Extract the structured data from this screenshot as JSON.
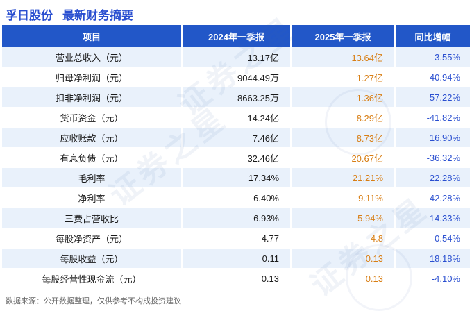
{
  "header": {
    "stock_name": "孚日股份",
    "title": "最新财务摘要"
  },
  "footer": {
    "note": "数据来源：公开数据整理，仅供参考不构成投资建议"
  },
  "watermark": {
    "text": "证券之星"
  },
  "colors": {
    "title_blue": "#2a4fd0",
    "header_bg": "#2257c8",
    "row_alt_bg": "#e9f1fb",
    "col_2025": "#d87e14",
    "col_yoy": "#2a4fd0"
  },
  "chart_data": {
    "type": "table",
    "title": "孚日股份 最新财务摘要",
    "columns": [
      "项目",
      "2024年一季报",
      "2025年一季报",
      "同比增幅"
    ],
    "rows": [
      [
        "营业总收入（元）",
        "13.17亿",
        "13.64亿",
        "3.55%"
      ],
      [
        "归母净利润（元）",
        "9044.49万",
        "1.27亿",
        "40.94%"
      ],
      [
        "扣非净利润（元）",
        "8663.25万",
        "1.36亿",
        "57.22%"
      ],
      [
        "货币资金（元）",
        "14.24亿",
        "8.29亿",
        "-41.82%"
      ],
      [
        "应收账款（元）",
        "7.46亿",
        "8.73亿",
        "16.90%"
      ],
      [
        "有息负债（元）",
        "32.46亿",
        "20.67亿",
        "-36.32%"
      ],
      [
        "毛利率",
        "17.34%",
        "21.21%",
        "22.28%"
      ],
      [
        "净利率",
        "6.40%",
        "9.11%",
        "42.28%"
      ],
      [
        "三费占营收比",
        "6.93%",
        "5.94%",
        "-14.33%"
      ],
      [
        "每股净资产（元）",
        "4.77",
        "4.8",
        "0.54%"
      ],
      [
        "每股收益（元）",
        "0.11",
        "0.13",
        "18.18%"
      ],
      [
        "每股经营性现金流（元）",
        "0.13",
        "0.13",
        "-4.10%"
      ]
    ]
  }
}
